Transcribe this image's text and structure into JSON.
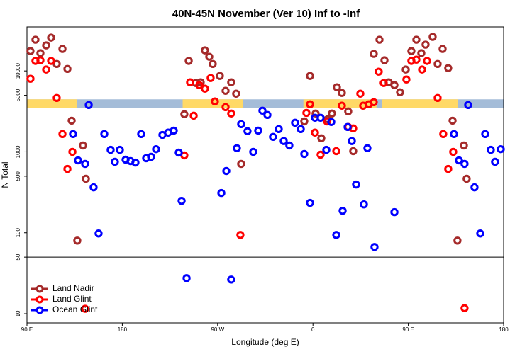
{
  "chart_data": {
    "type": "scatter",
    "title": "40N-45N November (Ver 10)   Inf to -Inf",
    "xlabel": "Longitude (deg E)",
    "ylabel": "N Total",
    "ylog": true,
    "xlim": [
      90,
      540
    ],
    "ylim": [
      7.7,
      35000
    ],
    "xticks": [
      {
        "value": 90,
        "label": "90 E"
      },
      180,
      {
        "value": 270,
        "label": "90 W"
      },
      {
        "value": 360,
        "label": "0"
      },
      {
        "value": 450,
        "label": "90 E"
      },
      {
        "value": 540,
        "label": "180"
      }
    ],
    "yticks": [
      10,
      50,
      100,
      500,
      1000,
      5000,
      10000
    ],
    "hline": 50,
    "legend": "bottom-left",
    "land_mask": {
      "ylim": [
        3500,
        4460
      ],
      "ocean_color": "#a4bcd8",
      "land_color": "#ffd966",
      "land_ranges": [
        [
          90,
          137
        ],
        [
          237,
          294
        ],
        [
          351,
          420
        ],
        [
          425,
          497
        ]
      ]
    },
    "series": [
      {
        "name": "Land Nadir",
        "color": "#a52a2a",
        "x": [
          93.3,
          98,
          102.7,
          108.1,
          112.8,
          118.1,
          123.5,
          128.2,
          132.2,
          142.9,
          145.6,
          137.5,
          238.6,
          242.7,
          249.4,
          254,
          258,
          262.1,
          265.4,
          272.1,
          277.5,
          282.8,
          287.5,
          292.2,
          351.8,
          357.2,
          362.5,
          367.9,
          373.9,
          377.9,
          382.6,
          387.3,
          393.3,
          398,
          417.4,
          422.8,
          427.5,
          431.5,
          436.9,
          442.2,
          447.6,
          452.9,
          457.6,
          462.3,
          466.3,
          473,
          477.7,
          482.4,
          487.7,
          491.8,
          502.5,
          505.1,
          496.4
        ],
        "values": [
          17600,
          24300,
          16600,
          20700,
          25800,
          12200,
          18700,
          10600,
          2430,
          1200,
          465,
          80,
          2920,
          13300,
          7100,
          7240,
          17960,
          14970,
          12200,
          8680,
          5680,
          7240,
          5240,
          710,
          2380,
          8680,
          2980,
          1470,
          2530,
          2980,
          6290,
          5350,
          3160,
          1020,
          16250,
          24300,
          13540,
          7240,
          6680,
          5450,
          10420,
          17600,
          24300,
          16600,
          21130,
          26360,
          12200,
          18700,
          10840,
          2430,
          1200,
          465,
          80
        ]
      },
      {
        "name": "Land Glint",
        "color": "#ff0000",
        "x": [
          93.3,
          98,
          102.7,
          108.1,
          112.8,
          118.1,
          123.5,
          128.2,
          132.9,
          144.9,
          238.6,
          247.4,
          244,
          252.7,
          258,
          263.4,
          267.4,
          277.5,
          282.8,
          291.5,
          353.8,
          357.2,
          361.9,
          367.2,
          373.3,
          382,
          387.3,
          393.3,
          398,
          404.7,
          407.4,
          412.7,
          417.4,
          422.1,
          426.8,
          448.2,
          452.9,
          457.6,
          463,
          467.7,
          477.7,
          483,
          487.7,
          492.4,
          503.1
        ],
        "values": [
          8010,
          13300,
          13540,
          10420,
          13300,
          4640,
          1660,
          615,
          1000,
          11.5,
          904,
          2800,
          7240,
          6680,
          6040,
          8170,
          4200,
          3570,
          2980,
          94,
          3030,
          3870,
          1730,
          922,
          2380,
          1020,
          3720,
          2030,
          1950,
          5240,
          3720,
          3870,
          4110,
          9800,
          7100,
          7850,
          13300,
          13800,
          10420,
          13300,
          4640,
          1660,
          615,
          1000,
          11.7
        ]
      },
      {
        "name": "Ocean Glint",
        "color": "#0000ff",
        "x": [
          148.3,
          133.5,
          138.2,
          144.9,
          152.9,
          157.6,
          163,
          169,
          173,
          177.7,
          183.1,
          187.8,
          192.4,
          197.8,
          202.5,
          207.2,
          211.9,
          217.9,
          223.3,
          228.6,
          233.3,
          236,
          240.7,
          273.5,
          278.2,
          282.8,
          288.2,
          292.2,
          298.2,
          303.6,
          308.3,
          312.3,
          317,
          322.3,
          327.7,
          332.4,
          337.7,
          343.1,
          348.5,
          351.8,
          357.2,
          361.9,
          367.2,
          372.6,
          377.3,
          382,
          388,
          392.7,
          396.7,
          400.7,
          408.1,
          411.4,
          418.1,
          436.9,
          506.5,
          493.1,
          497.8,
          503.1,
          512.5,
          517.9,
          522.6,
          527.9,
          531.9,
          537.3
        ],
        "values": [
          3790,
          1660,
          785,
          710,
          364,
          98,
          1660,
          1060,
          754,
          1060,
          801,
          769,
          738,
          1660,
          834,
          868,
          1080,
          1620,
          1730,
          1830,
          980,
          248,
          27.5,
          310,
          580,
          26.4,
          1110,
          2200,
          1800,
          1000,
          1830,
          3230,
          2860,
          1530,
          1910,
          1360,
          1200,
          2290,
          1910,
          942,
          234,
          2640,
          2640,
          1060,
          2340,
          94,
          187,
          2030,
          1360,
          395,
          224,
          1110,
          66.8,
          180,
          3790,
          1660,
          785,
          710,
          364,
          98,
          1660,
          1060,
          754,
          1080
        ]
      }
    ]
  }
}
